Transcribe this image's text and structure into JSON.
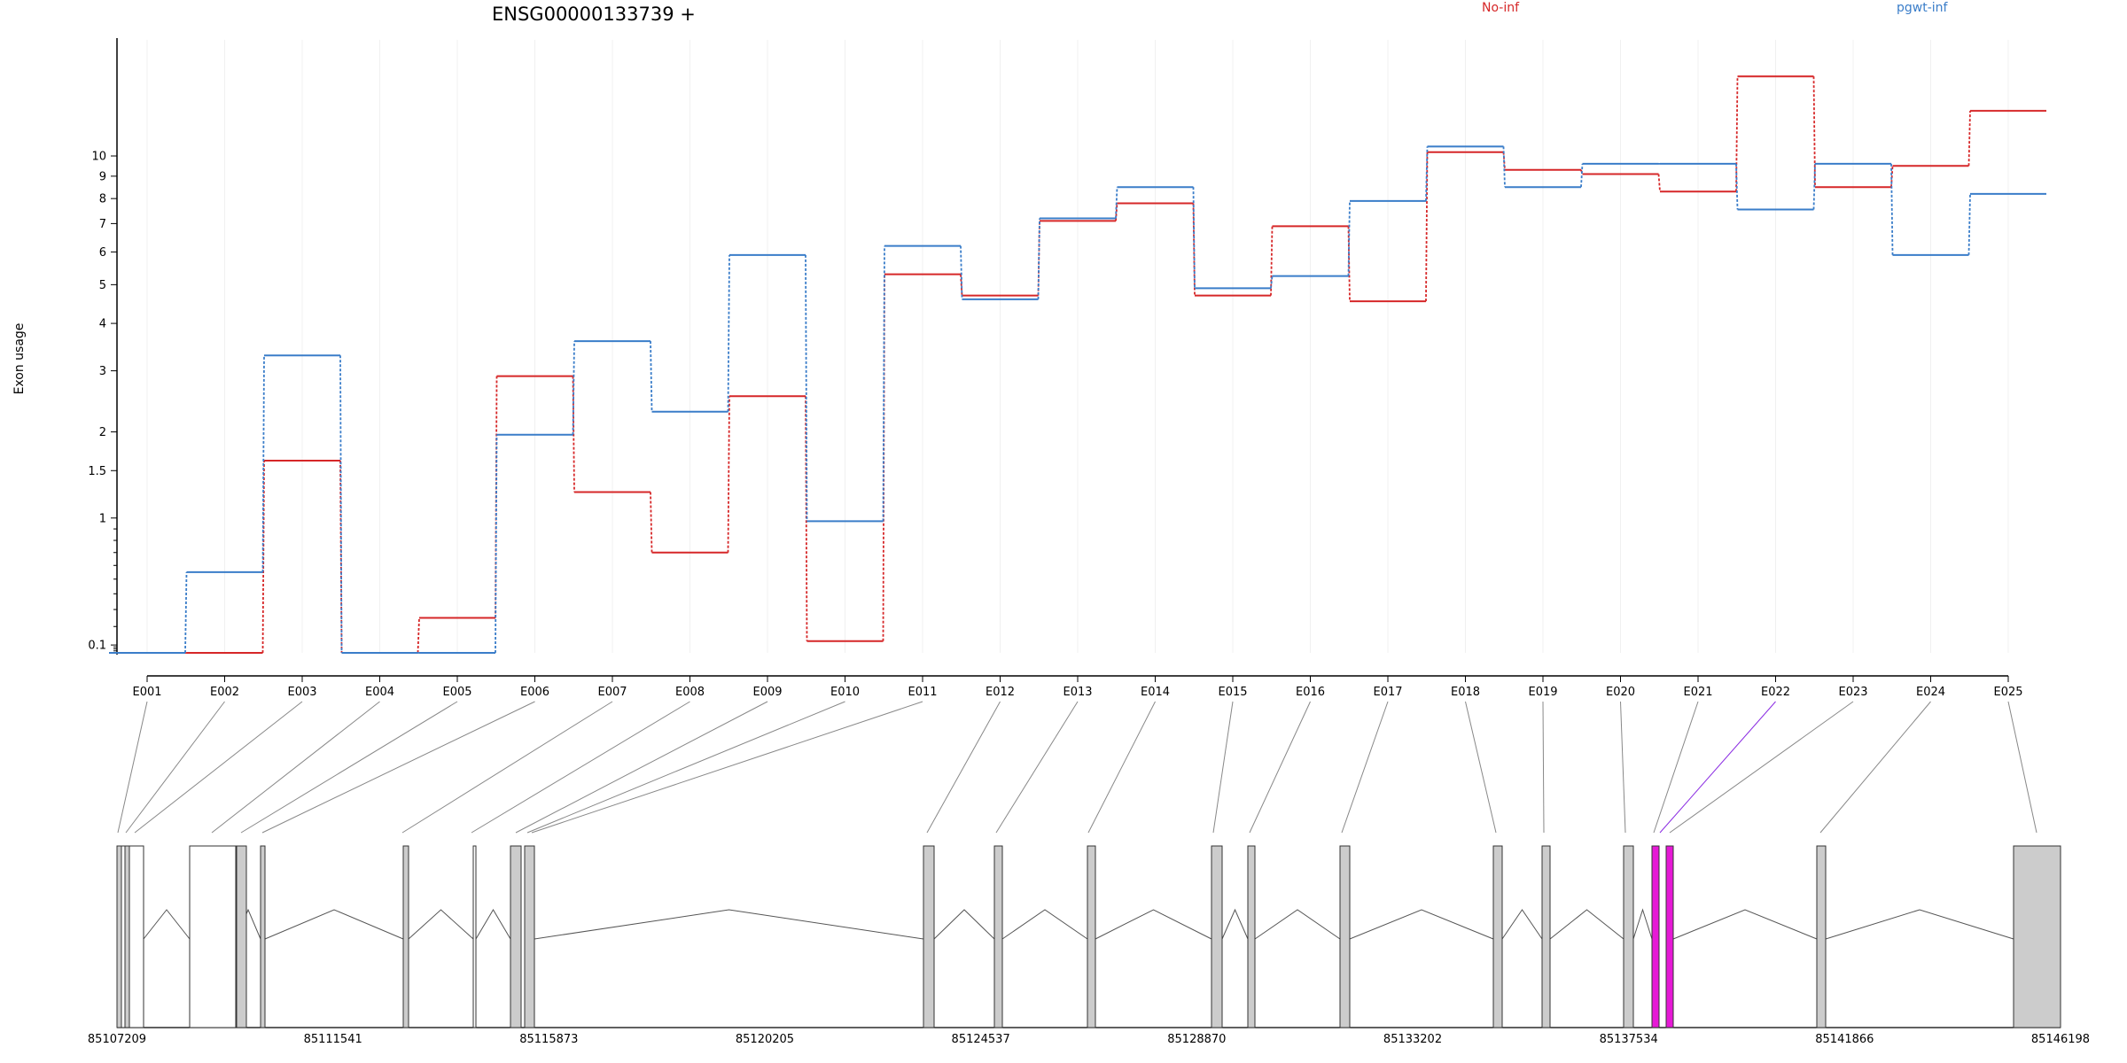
{
  "chart_data": {
    "type": "line",
    "title": "ENSG00000133739 +",
    "ylabel": "Exon usage",
    "y_scale": "log(1+y)",
    "yticks": [
      "0.1",
      "1",
      "1.5",
      "2",
      "3",
      "4",
      "5",
      "6",
      "7",
      "8",
      "9",
      "10"
    ],
    "ylim": [
      0.06,
      18
    ],
    "categories": [
      "E001",
      "E002",
      "E003",
      "E004",
      "E005",
      "E006",
      "E007",
      "E008",
      "E009",
      "E010",
      "E011",
      "E012",
      "E013",
      "E014",
      "E015",
      "E016",
      "E017",
      "E018",
      "E019",
      "E020",
      "E021",
      "E022",
      "E023",
      "E024",
      "E025"
    ],
    "series": [
      {
        "name": "No-inf",
        "color": "#d62728",
        "values": [
          0.06,
          0.06,
          1.62,
          0.06,
          0.25,
          2.9,
          1.26,
          0.7,
          2.55,
          0.12,
          5.3,
          4.7,
          7.1,
          7.8,
          4.7,
          6.9,
          4.55,
          10.2,
          9.3,
          9.1,
          8.3,
          15.0,
          8.5,
          9.5,
          12.6
        ]
      },
      {
        "name": "pgwt-inf",
        "color": "#3a7dc9",
        "values": [
          0.06,
          0.55,
          3.3,
          0.06,
          0.06,
          1.96,
          3.6,
          2.3,
          5.9,
          0.97,
          6.2,
          4.6,
          7.2,
          8.5,
          4.9,
          5.25,
          7.9,
          10.5,
          8.5,
          9.6,
          9.6,
          7.55,
          9.6,
          5.9,
          8.2
        ]
      }
    ],
    "gene_model": {
      "coordinates": [
        "85107209",
        "85111541",
        "85115873",
        "85120205",
        "85124537",
        "85128870",
        "85133202",
        "85137534",
        "85141866",
        "85146198"
      ],
      "highlighted_exon": "E022",
      "highlight_color": "#e619d6",
      "exon_fill": "#cccccc"
    }
  }
}
